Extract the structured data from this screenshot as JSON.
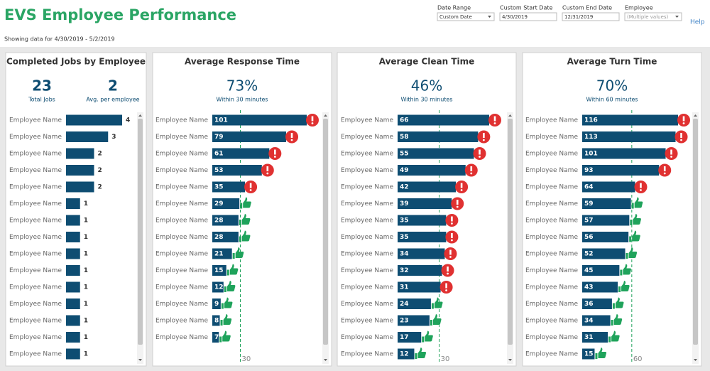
{
  "header": {
    "title": "EVS Employee Performance",
    "subtitle": "Showing data for 4/30/2019 - 5/2/2019",
    "help": "Help",
    "filters": [
      {
        "label": "Date Range",
        "value": "Custom Date"
      },
      {
        "label": "Custom Start Date",
        "value": "4/30/2019"
      },
      {
        "label": "Custom End Date",
        "value": "12/31/2019"
      },
      {
        "label": "Employee",
        "value": "(Multiple values)"
      }
    ]
  },
  "panels": [
    {
      "title": "Completed Jobs by Employee",
      "kpis": [
        {
          "value": 23,
          "label": "Total Jobs"
        },
        {
          "value": 2,
          "label": "Avg. per employee"
        }
      ],
      "names": [
        "Employee Name",
        "Employee Name",
        "Employee Name",
        "Employee Name",
        "Employee Name",
        "Employee Name",
        "Employee Name",
        "Employee Name",
        "Employee Name",
        "Employee Name",
        "Employee Name",
        "Employee Name",
        "Employee Name",
        "Employee Name",
        "Employee Name"
      ],
      "values": [
        4,
        3,
        2,
        2,
        2,
        1,
        1,
        1,
        1,
        1,
        1,
        1,
        1,
        1,
        1
      ]
    },
    {
      "title": "Average Response Time",
      "kpi": "73%",
      "kpi_label": "Within 30 minutes",
      "threshold": 30,
      "names": [
        "Employee Name",
        "Employee Name",
        "Employee Name",
        "Employee Name",
        "Employee Name",
        "Employee Name",
        "Employee Name",
        "Employee Name",
        "Employee Name",
        "Employee Name",
        "Employee Name",
        "Employee Name",
        "Employee Name",
        "Employee Name"
      ],
      "values": [
        101,
        79,
        61,
        53,
        35,
        29,
        28,
        28,
        21,
        15,
        12,
        9,
        8,
        7
      ]
    },
    {
      "title": "Average Clean Time",
      "kpi": "46%",
      "kpi_label": "Within 30 minutes",
      "threshold": 30,
      "names": [
        "Employee Name",
        "Employee Name",
        "Employee Name",
        "Employee Name",
        "Employee Name",
        "Employee Name",
        "Employee Name",
        "Employee Name",
        "Employee Name",
        "Employee Name",
        "Employee Name",
        "Employee Name",
        "Employee Name",
        "Employee Name",
        "Employee Name"
      ],
      "values": [
        66,
        58,
        55,
        49,
        42,
        39,
        35,
        35,
        34,
        32,
        31,
        24,
        23,
        17,
        12
      ]
    },
    {
      "title": "Average Turn Time",
      "kpi": "70%",
      "kpi_label": "Within 60 minutes",
      "threshold": 60,
      "names": [
        "Employee Name",
        "Employee Name",
        "Employee Name",
        "Employee Name",
        "Employee Name",
        "Employee Name",
        "Employee Name",
        "Employee Name",
        "Employee Name",
        "Employee Name",
        "Employee Name",
        "Employee Name",
        "Employee Name",
        "Employee Name",
        "Employee Name"
      ],
      "values": [
        116,
        113,
        101,
        93,
        64,
        59,
        57,
        56,
        52,
        45,
        43,
        36,
        34,
        31,
        15
      ]
    }
  ]
}
